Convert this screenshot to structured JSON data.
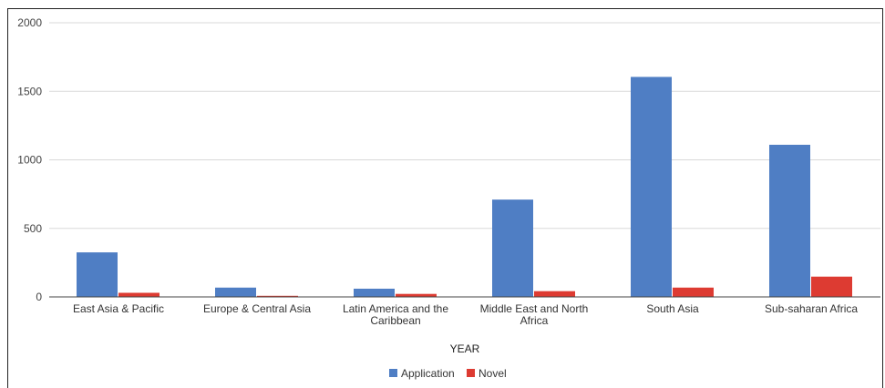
{
  "chart_data": {
    "type": "bar",
    "title": "",
    "xlabel": "YEAR",
    "ylabel": "",
    "ylim": [
      0,
      2000
    ],
    "yticks": [
      0,
      500,
      1000,
      1500,
      2000
    ],
    "grid": true,
    "legend_position": "bottom",
    "categories": [
      [
        "East Asia & Pacific"
      ],
      [
        "Europe & Central Asia"
      ],
      [
        "Latin America and the",
        "Caribbean"
      ],
      [
        "Middle East and North",
        "Africa"
      ],
      [
        "South Asia"
      ],
      [
        "Sub-saharan Africa"
      ]
    ],
    "series": [
      {
        "name": "Application",
        "color": "#4f7ec4",
        "values": [
          325,
          68,
          60,
          710,
          1605,
          1110
        ]
      },
      {
        "name": "Novel",
        "color": "#dd3b32",
        "values": [
          30,
          8,
          22,
          42,
          68,
          148
        ]
      }
    ]
  }
}
